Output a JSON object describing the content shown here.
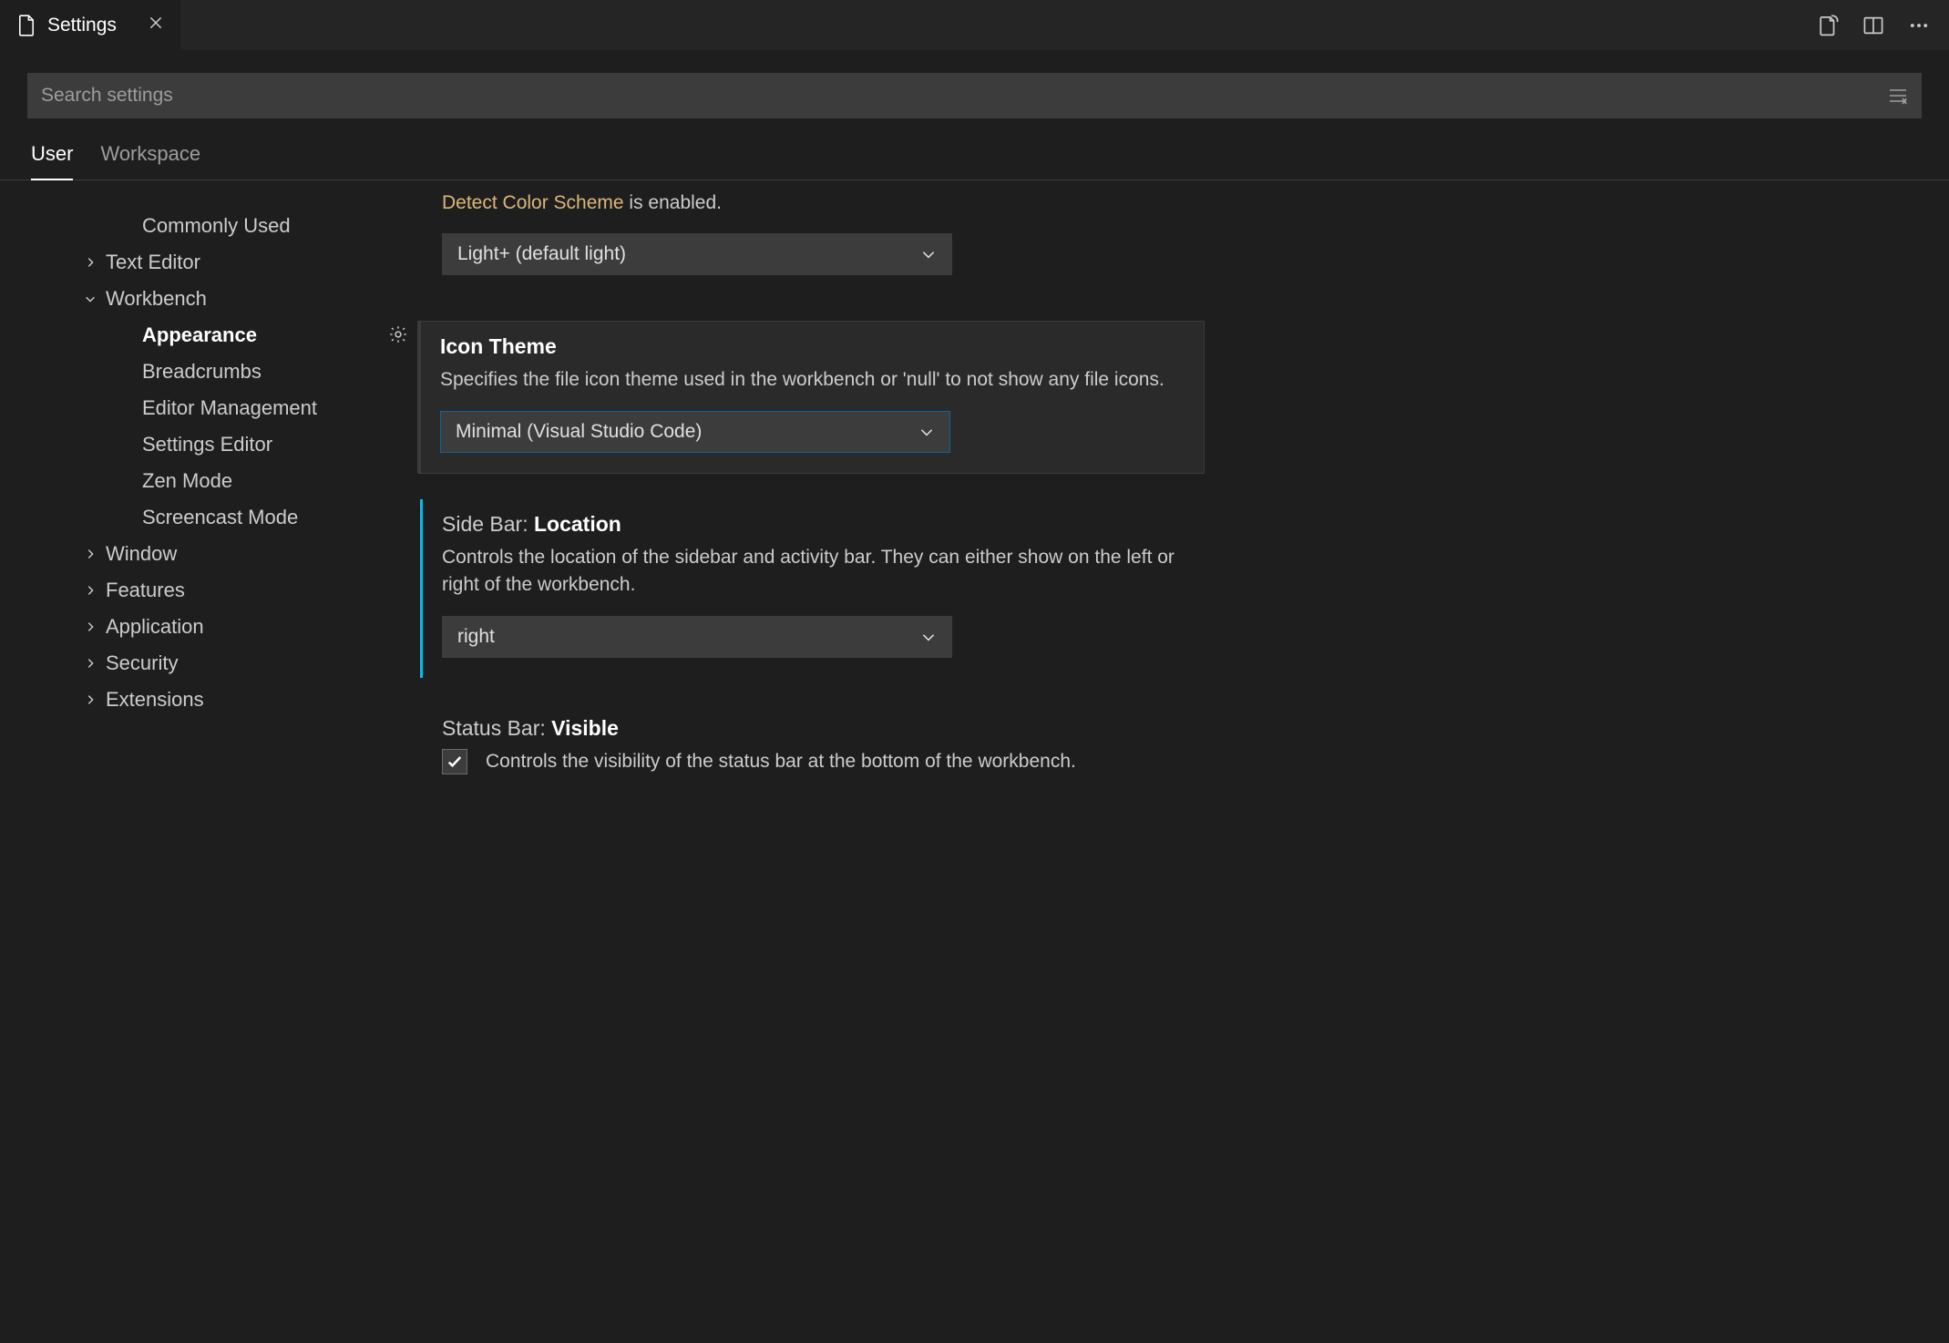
{
  "colors": {
    "bg": "#1e1e1e",
    "panel_bg": "#2a2a2a",
    "input_bg": "#3c3c3c",
    "text": "#cccccc",
    "text_bright": "#ffffff",
    "link": "#dcb67a",
    "focus_border": "#0e639c",
    "accent_modified": "#0e639c",
    "accent_neutral": "#3c3c3c",
    "accent_active": "#00bcf2"
  },
  "tab": {
    "title": "Settings"
  },
  "search": {
    "placeholder": "Search settings"
  },
  "scope_tabs": {
    "user": "User",
    "workspace": "Workspace",
    "active": "user"
  },
  "tree": [
    {
      "label": "Commonly Used",
      "depth": 1,
      "chevron": null
    },
    {
      "label": "Text Editor",
      "depth": 0,
      "chevron": "right"
    },
    {
      "label": "Workbench",
      "depth": 0,
      "chevron": "down"
    },
    {
      "label": "Appearance",
      "depth": 1,
      "chevron": null,
      "selected": true
    },
    {
      "label": "Breadcrumbs",
      "depth": 1,
      "chevron": null
    },
    {
      "label": "Editor Management",
      "depth": 1,
      "chevron": null
    },
    {
      "label": "Settings Editor",
      "depth": 1,
      "chevron": null
    },
    {
      "label": "Zen Mode",
      "depth": 1,
      "chevron": null
    },
    {
      "label": "Screencast Mode",
      "depth": 1,
      "chevron": null
    },
    {
      "label": "Window",
      "depth": 0,
      "chevron": "right"
    },
    {
      "label": "Features",
      "depth": 0,
      "chevron": "right"
    },
    {
      "label": "Application",
      "depth": 0,
      "chevron": "right"
    },
    {
      "label": "Security",
      "depth": 0,
      "chevron": "right"
    },
    {
      "label": "Extensions",
      "depth": 0,
      "chevron": "right"
    }
  ],
  "settings": {
    "prev_partial": {
      "link_text": "Detect Color Scheme",
      "tail_text": " is enabled.",
      "dropdown_value": "Light+ (default light)"
    },
    "icon_theme": {
      "title": "Icon Theme",
      "desc": "Specifies the file icon theme used in the workbench or 'null' to not show any file icons.",
      "dropdown_value": "Minimal (Visual Studio Code)",
      "focused": true,
      "show_gear": true,
      "accent": "#3c3c3c"
    },
    "sidebar_location": {
      "title_cat": "Side Bar: ",
      "title_key": "Location",
      "desc": "Controls the location of the sidebar and activity bar. They can either show on the left or right of the workbench.",
      "dropdown_value": "right",
      "accent": "#00bcf2"
    },
    "statusbar_visible": {
      "title_cat": "Status Bar: ",
      "title_key": "Visible",
      "desc": "Controls the visibility of the status bar at the bottom of the workbench.",
      "checked": true
    }
  }
}
